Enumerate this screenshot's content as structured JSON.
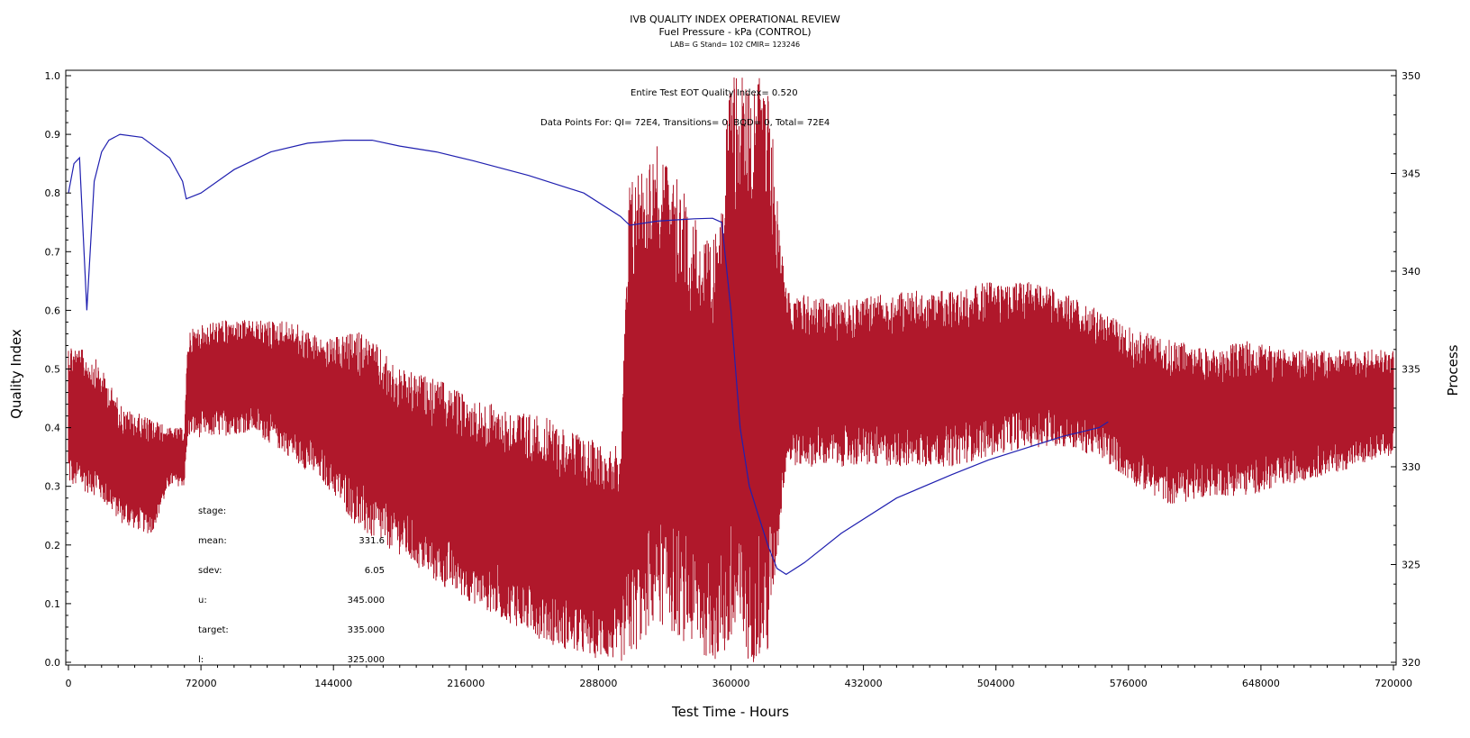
{
  "colors": {
    "process": "#B0182B",
    "qi": "#2020B0",
    "axis": "#000000",
    "background": "#FFFFFF"
  },
  "chart_data": {
    "type": "line",
    "title": "IVB QUALITY INDEX OPERATIONAL REVIEW",
    "subtitle": "Fuel Pressure - kPa (CONTROL)",
    "subtitle2": "LAB= G Stand= 102 CMIR= 123246",
    "xlabel": "Test Time - Hours",
    "ylabel_left": "Quality Index",
    "ylabel_right": "Process",
    "xlim": [
      0,
      720000
    ],
    "ylim_left": [
      0,
      1
    ],
    "ylim_right": [
      320,
      350
    ],
    "xticks": [
      "0",
      "72000",
      "144000",
      "216000",
      "288000",
      "360000",
      "432000",
      "504000",
      "576000",
      "648000",
      "720000"
    ],
    "yticks_left": [
      "0.0",
      "0.1",
      "0.2",
      "0.3",
      "0.4",
      "0.5",
      "0.6",
      "0.7",
      "0.8",
      "0.9",
      "1.0"
    ],
    "yticks_right": [
      "320",
      "325",
      "330",
      "335",
      "340",
      "345",
      "350"
    ],
    "annotations": {
      "eot": "Entire Test EOT Quality Index=   0.520",
      "points": "Data Points For: QI=  72E4, Transitions=     0, BQD=     0, Total=  72E4"
    },
    "stats": [
      {
        "label": "stage:",
        "value": ""
      },
      {
        "label": "mean:",
        "value": "331.6"
      },
      {
        "label": "sdev:",
        "value": "6.05"
      },
      {
        "label": "u:",
        "value": "345.000"
      },
      {
        "label": "target:",
        "value": "335.000"
      },
      {
        "label": "l:",
        "value": "325.000"
      }
    ],
    "grid": false,
    "legend": "none",
    "series": [
      {
        "axis": "left",
        "color": "#2020B0",
        "x": [
          0,
          3000,
          6000,
          10000,
          14000,
          18000,
          22000,
          28000,
          40000,
          55000,
          62000,
          64000,
          72000,
          90000,
          110000,
          130000,
          150000,
          165000,
          180000,
          200000,
          220000,
          250000,
          280000,
          300000,
          305000,
          320000,
          340000,
          350000,
          355000,
          360000,
          365000,
          370000,
          375000,
          380000,
          385000,
          390000,
          400000,
          420000,
          450000,
          480000,
          500000,
          520000,
          540000,
          560000,
          565000
        ],
        "values": [
          0.8,
          0.85,
          0.86,
          0.6,
          0.82,
          0.87,
          0.89,
          0.9,
          0.895,
          0.86,
          0.82,
          0.79,
          0.8,
          0.84,
          0.87,
          0.885,
          0.89,
          0.89,
          0.88,
          0.87,
          0.855,
          0.83,
          0.8,
          0.76,
          0.745,
          0.752,
          0.756,
          0.757,
          0.75,
          0.6,
          0.4,
          0.3,
          0.25,
          0.2,
          0.16,
          0.15,
          0.17,
          0.22,
          0.28,
          0.32,
          0.345,
          0.365,
          0.385,
          0.4,
          0.41
        ]
      },
      {
        "axis": "right",
        "color": "#B0182B",
        "x": [
          0,
          15000,
          30000,
          45000,
          55000,
          63000,
          65000,
          80000,
          100000,
          120000,
          140000,
          160000,
          180000,
          200000,
          220000,
          240000,
          260000,
          280000,
          300000,
          305000,
          320000,
          335000,
          350000,
          360000,
          370000,
          380000,
          390000,
          420000,
          450000,
          480000,
          500000,
          520000,
          540000,
          560000,
          580000,
          600000,
          620000,
          640000,
          660000,
          680000,
          700000,
          720000
        ],
        "lower": [
          329.0,
          328.5,
          327.0,
          326.5,
          329.0,
          329.0,
          331.5,
          331.5,
          331.8,
          330.5,
          329.0,
          326.5,
          325.5,
          324.0,
          323.0,
          322.0,
          321.0,
          320.3,
          320.0,
          320.0,
          322.0,
          321.0,
          320.0,
          320.0,
          320.0,
          320.0,
          330.0,
          330.0,
          330.0,
          330.0,
          330.5,
          331.0,
          331.0,
          330.5,
          329.0,
          328.0,
          328.5,
          328.5,
          329.0,
          329.5,
          330.0,
          330.5
        ],
        "upper": [
          336.5,
          335.5,
          333.0,
          332.5,
          332.0,
          332.0,
          337.0,
          337.5,
          337.5,
          337.5,
          336.5,
          337.0,
          335.0,
          334.5,
          333.5,
          333.0,
          332.5,
          331.5,
          331.0,
          345.0,
          346.5,
          344.0,
          341.0,
          350.0,
          350.0,
          350.0,
          339.0,
          338.5,
          339.0,
          339.0,
          339.5,
          339.5,
          339.0,
          338.0,
          337.0,
          336.5,
          336.0,
          336.5,
          336.0,
          336.0,
          336.0,
          336.0
        ]
      }
    ]
  }
}
